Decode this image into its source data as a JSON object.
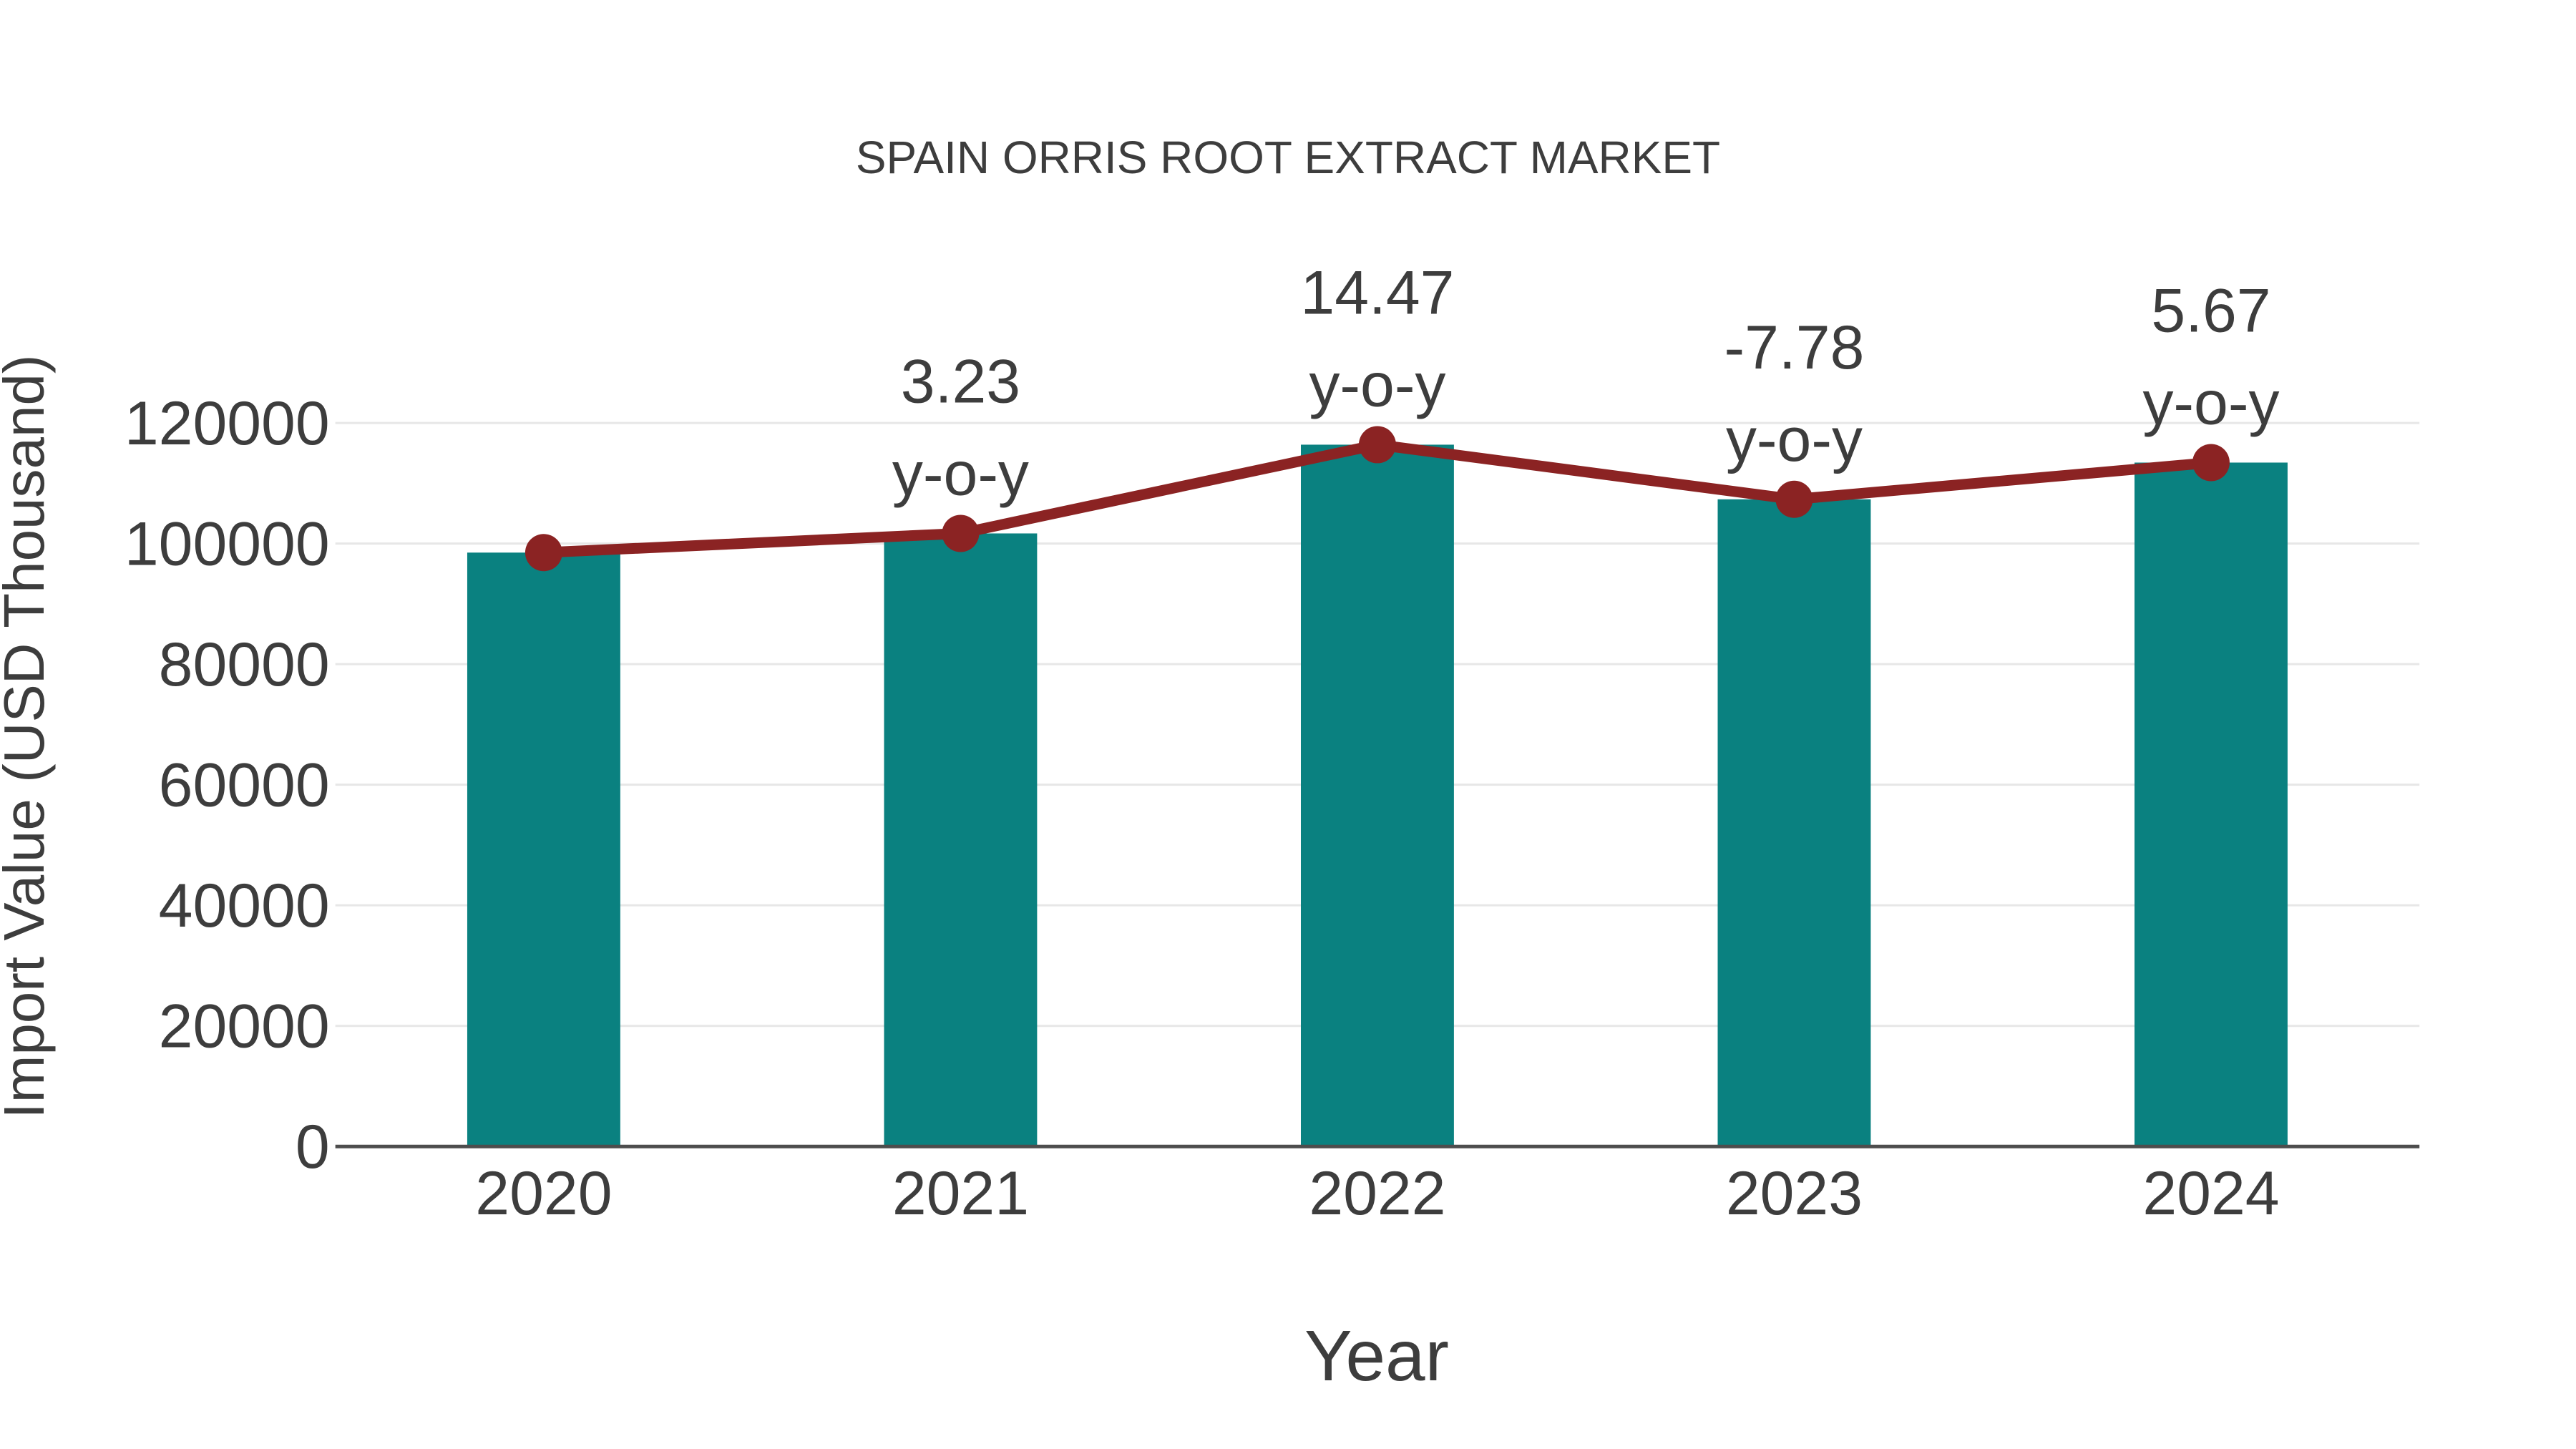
{
  "colors": {
    "bar": "#0a8180",
    "line": "#8b2323",
    "marker": "#8b2323",
    "text": "#3d3d3d",
    "grid": "#e7e7e7",
    "axis": "#4d4d4d",
    "background": "#ffffff"
  },
  "chart_data": {
    "type": "bar",
    "title": "SPAIN ORRIS ROOT EXTRACT MARKET",
    "xlabel": "Year",
    "ylabel": "Import Value (USD Thousand)",
    "categories": [
      "2020",
      "2021",
      "2022",
      "2023",
      "2024"
    ],
    "series": [
      {
        "name": "Import Value bars",
        "type": "bar",
        "color": "#0a8180",
        "values": [
          98500,
          101680,
          116400,
          107340,
          113430
        ]
      },
      {
        "name": "Import Value trend line",
        "type": "line",
        "color": "#8b2323",
        "values": [
          98500,
          101680,
          116400,
          107340,
          113430
        ]
      }
    ],
    "yoy_annotations": [
      {
        "category": "2021",
        "text": "3.23",
        "subtext": "y-o-y"
      },
      {
        "category": "2022",
        "text": "14.47",
        "subtext": "y-o-y"
      },
      {
        "category": "2023",
        "text": "-7.78",
        "subtext": "y-o-y"
      },
      {
        "category": "2024",
        "text": "5.67",
        "subtext": "y-o-y"
      }
    ],
    "ylim": [
      0,
      130000
    ],
    "yticks": [
      0,
      20000,
      40000,
      60000,
      80000,
      100000,
      120000
    ],
    "grid": true,
    "legend": false
  }
}
